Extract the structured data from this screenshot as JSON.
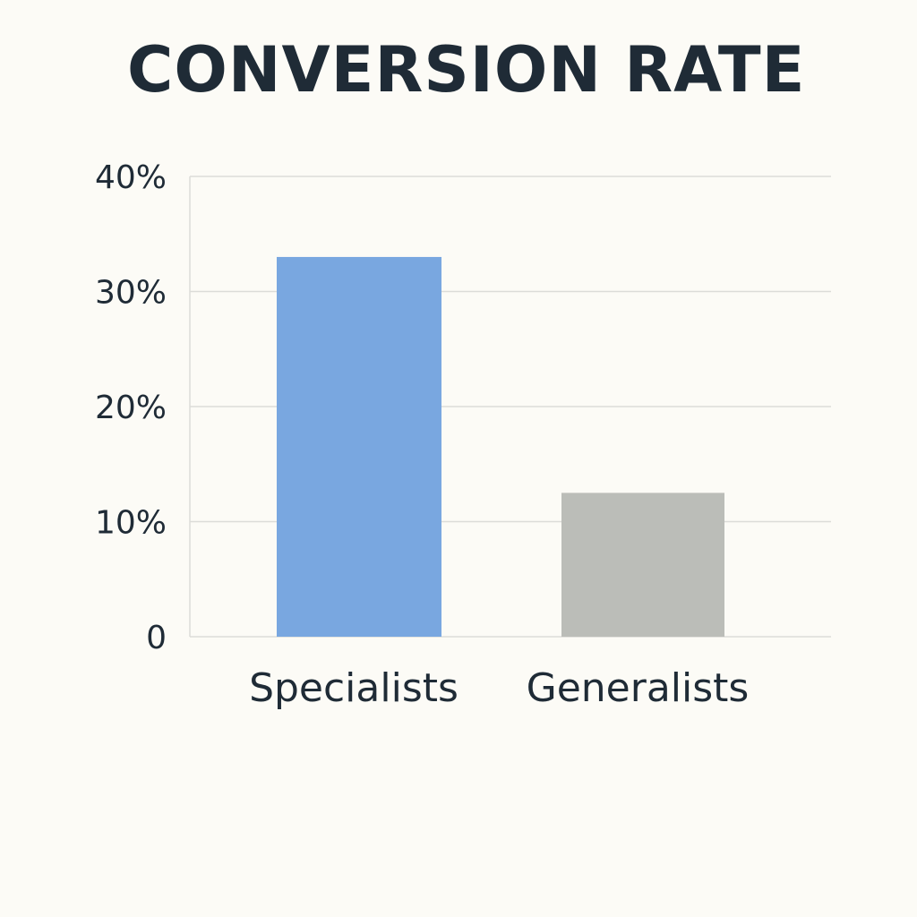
{
  "chart_data": {
    "type": "bar",
    "title": "CONVERSION RATE",
    "xlabel": "",
    "ylabel": "",
    "categories": [
      "Specialists",
      "Generalists"
    ],
    "values": [
      33,
      12.5
    ],
    "unit": "%",
    "ylim": [
      0,
      40
    ],
    "yticks": [
      {
        "value": 0,
        "label": "0"
      },
      {
        "value": 10,
        "label": "10%"
      },
      {
        "value": 20,
        "label": "20%"
      },
      {
        "value": 30,
        "label": "30%"
      },
      {
        "value": 40,
        "label": "40%"
      }
    ],
    "grid": true,
    "legend": "none",
    "colors": [
      "#79a7e0",
      "#bbbdb8"
    ],
    "grid_color": "#dcdcd8",
    "background": "#fcfbf6"
  }
}
